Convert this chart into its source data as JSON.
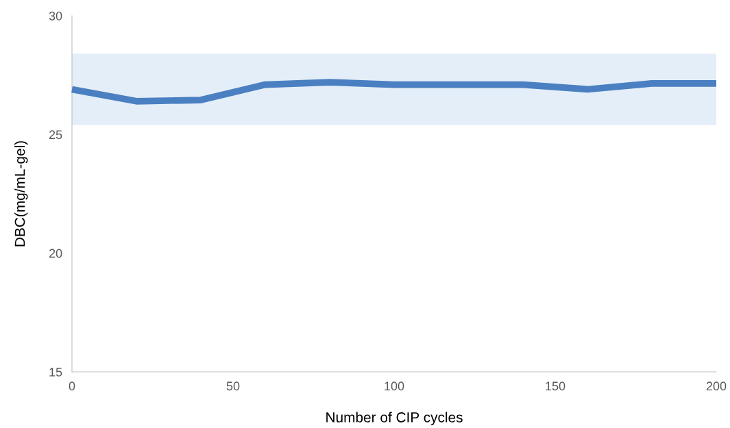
{
  "chart_data": {
    "type": "line",
    "xlabel": "Number of CIP cycles",
    "ylabel": "DBC(mg/mL-gel)",
    "x": [
      0,
      20,
      40,
      60,
      80,
      100,
      120,
      140,
      160,
      180,
      200
    ],
    "series": [
      {
        "color": "#4a80c2",
        "values": [
          26.9,
          26.4,
          26.45,
          27.1,
          27.2,
          27.1,
          27.1,
          27.1,
          26.9,
          27.15,
          27.15
        ]
      }
    ],
    "bands": [
      {
        "axis": "y",
        "from": 25.4,
        "to": 28.4,
        "color": "#e4eef8"
      }
    ],
    "xlim": [
      0,
      200
    ],
    "xticks": [
      0,
      50,
      100,
      150,
      200
    ],
    "ylim": [
      15,
      30
    ],
    "yticks": [
      15,
      20,
      25,
      30
    ],
    "grid": false,
    "legend": false,
    "marker": "none",
    "line_style": "solid"
  }
}
